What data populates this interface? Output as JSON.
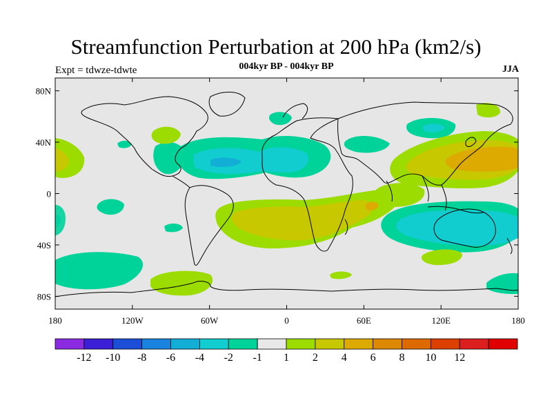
{
  "header": {
    "title": "Streamfunction Perturbation at 200 hPa (km2/s)",
    "subtitle": "004kyr BP - 004kyr BP",
    "left_label": "Expt = tdwze-tdwte",
    "right_label": "JJA"
  },
  "map": {
    "projection": "cylindrical equidistant",
    "lon_range": [
      -180,
      180
    ],
    "lat_range": [
      -90,
      90
    ],
    "y_ticks": [
      {
        "lat": 80,
        "label": "80N"
      },
      {
        "lat": 40,
        "label": "40N"
      },
      {
        "lat": 0,
        "label": "0"
      },
      {
        "lat": -40,
        "label": "40S"
      },
      {
        "lat": -80,
        "label": "80S"
      }
    ],
    "x_ticks": [
      {
        "lon": -180,
        "label": "180"
      },
      {
        "lon": -120,
        "label": "120W"
      },
      {
        "lon": -60,
        "label": "60W"
      },
      {
        "lon": 0,
        "label": "0"
      },
      {
        "lon": 60,
        "label": "60E"
      },
      {
        "lon": 120,
        "label": "120E"
      },
      {
        "lon": 180,
        "label": "180"
      }
    ],
    "background_color": "#e6e6e6"
  },
  "colorbar": {
    "colors": [
      "#8a2be2",
      "#3a1fd6",
      "#1c4ed8",
      "#1a83e0",
      "#12aed6",
      "#12cdd0",
      "#00d39a",
      "#e8e8e8",
      "#9cdc00",
      "#c8c800",
      "#dcaa00",
      "#dc8800",
      "#dc6a00",
      "#dc4000",
      "#dc1e1e",
      "#e00000"
    ],
    "labels": [
      "-12",
      "-10",
      "-8",
      "-6",
      "-4",
      "-2",
      "-1",
      "1",
      "2",
      "4",
      "6",
      "8",
      "10",
      "12"
    ]
  },
  "chart_data": {
    "type": "map-contour",
    "title": "Streamfunction Perturbation at 200 hPa (km2/s)",
    "subtitle": "004kyr BP - 004kyr BP",
    "season": "JJA",
    "experiment": "Expt = tdwze-tdwte",
    "levels": [
      -12,
      -10,
      -8,
      -6,
      -4,
      -2,
      -1,
      1,
      2,
      4,
      6,
      8,
      10,
      12
    ],
    "regions": [
      {
        "name": "north-atlantic-negative",
        "lon": -35,
        "lat": 27,
        "rx": 40,
        "ry": 14,
        "value": -2
      },
      {
        "name": "north-atlantic-core",
        "lon": -45,
        "lat": 24,
        "rx": 12,
        "ry": 4,
        "value": -4
      },
      {
        "name": "north-africa-negative",
        "lon": 5,
        "lat": 25,
        "rx": 22,
        "ry": 10,
        "value": -2
      },
      {
        "name": "north-america-west-negative",
        "lon": -85,
        "lat": 28,
        "rx": 18,
        "ry": 12,
        "value": -1
      },
      {
        "name": "central-asia-negative",
        "lon": 60,
        "lat": 38,
        "rx": 18,
        "ry": 8,
        "value": -1
      },
      {
        "name": "north-pacific-negative",
        "lon": 118,
        "lat": 55,
        "rx": 14,
        "ry": 7,
        "value": -2
      },
      {
        "name": "scandinavia-negative",
        "lon": -5,
        "lat": 60,
        "rx": 6,
        "ry": 5,
        "value": -1
      },
      {
        "name": "australia-negative",
        "lon": 140,
        "lat": -25,
        "rx": 42,
        "ry": 14,
        "value": -4
      },
      {
        "name": "southern-ocean-west-negative",
        "lon": -150,
        "lat": -60,
        "rx": 32,
        "ry": 12,
        "value": -1
      },
      {
        "name": "west-pacific-positive",
        "lon": 145,
        "lat": 25,
        "rx": 38,
        "ry": 14,
        "value": 4
      },
      {
        "name": "south-atlantic-positive",
        "lon": 20,
        "lat": -22,
        "rx": 48,
        "ry": 13,
        "value": 2
      },
      {
        "name": "indian-ocean-positive",
        "lon": 70,
        "lat": -8,
        "rx": 20,
        "ry": 8,
        "value": 2
      },
      {
        "name": "east-pacific-positive",
        "lon": -178,
        "lat": 30,
        "rx": 14,
        "ry": 12,
        "value": 2
      },
      {
        "name": "north-america-east-positive",
        "lon": -90,
        "lat": 45,
        "rx": 10,
        "ry": 6,
        "value": 1
      },
      {
        "name": "south-pacific-positive",
        "lon": -80,
        "lat": -72,
        "rx": 18,
        "ry": 7,
        "value": 1
      },
      {
        "name": "south-indian-positive",
        "lon": 130,
        "lat": -48,
        "rx": 20,
        "ry": 6,
        "value": 1
      }
    ]
  }
}
